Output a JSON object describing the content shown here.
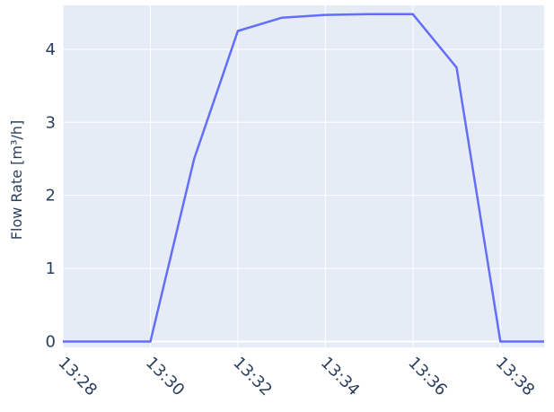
{
  "chart_data": {
    "type": "line",
    "title": "",
    "xlabel": "",
    "ylabel": "Flow Rate [m³/h]",
    "xlim": [
      "13:28",
      "13:39"
    ],
    "ylim": [
      -0.08,
      4.6
    ],
    "x_ticks": [
      "13:28",
      "13:30",
      "13:32",
      "13:34",
      "13:36",
      "13:38"
    ],
    "y_ticks": [
      0,
      1,
      2,
      3,
      4
    ],
    "grid": true,
    "background_color": "#e5ecf6",
    "grid_color": "#ffffff",
    "series": [
      {
        "color": "#636efa",
        "x": [
          "13:28",
          "13:29",
          "13:30",
          "13:31",
          "13:32",
          "13:33",
          "13:34",
          "13:35",
          "13:36",
          "13:37",
          "13:38",
          "13:39"
        ],
        "y": [
          0,
          0,
          0,
          2.5,
          4.25,
          4.43,
          4.47,
          4.48,
          4.48,
          3.75,
          0,
          0
        ]
      }
    ]
  }
}
